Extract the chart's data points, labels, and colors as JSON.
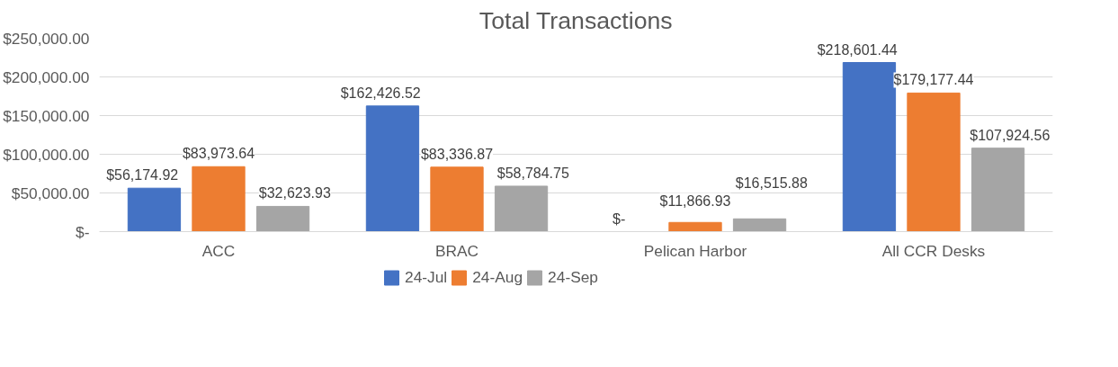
{
  "chart_data": {
    "type": "bar",
    "title": "Total Transactions",
    "categories": [
      "ACC",
      "BRAC",
      "Pelican Harbor",
      "All CCR Desks"
    ],
    "series": [
      {
        "name": "24-Jul",
        "color": "#4472c4",
        "values": [
          56174.92,
          162426.52,
          0,
          218601.44
        ],
        "value_labels": [
          "$56,174.92",
          "$162,426.52",
          "$-",
          "$218,601.44"
        ]
      },
      {
        "name": "24-Aug",
        "color": "#ed7d31",
        "values": [
          83973.64,
          83336.87,
          11866.93,
          179177.44
        ],
        "value_labels": [
          "$83,973.64",
          "$83,336.87",
          "$11,866.93",
          "$179,177.44"
        ]
      },
      {
        "name": "24-Sep",
        "color": "#a5a5a5",
        "values": [
          32623.93,
          58784.75,
          16515.88,
          107924.56
        ],
        "value_labels": [
          "$32,623.93",
          "$58,784.75",
          "$16,515.88",
          "$107,924.56"
        ]
      }
    ],
    "ylim": [
      0,
      250000
    ],
    "yticks": [
      {
        "value": 0,
        "label": "$-"
      },
      {
        "value": 50000,
        "label": "$50,000.00"
      },
      {
        "value": 100000,
        "label": "$100,000.00"
      },
      {
        "value": 150000,
        "label": "$150,000.00"
      },
      {
        "value": 200000,
        "label": "$200,000.00"
      },
      {
        "value": 250000,
        "label": "$250,000.00"
      }
    ],
    "grid": "y",
    "legend": "bottom"
  }
}
